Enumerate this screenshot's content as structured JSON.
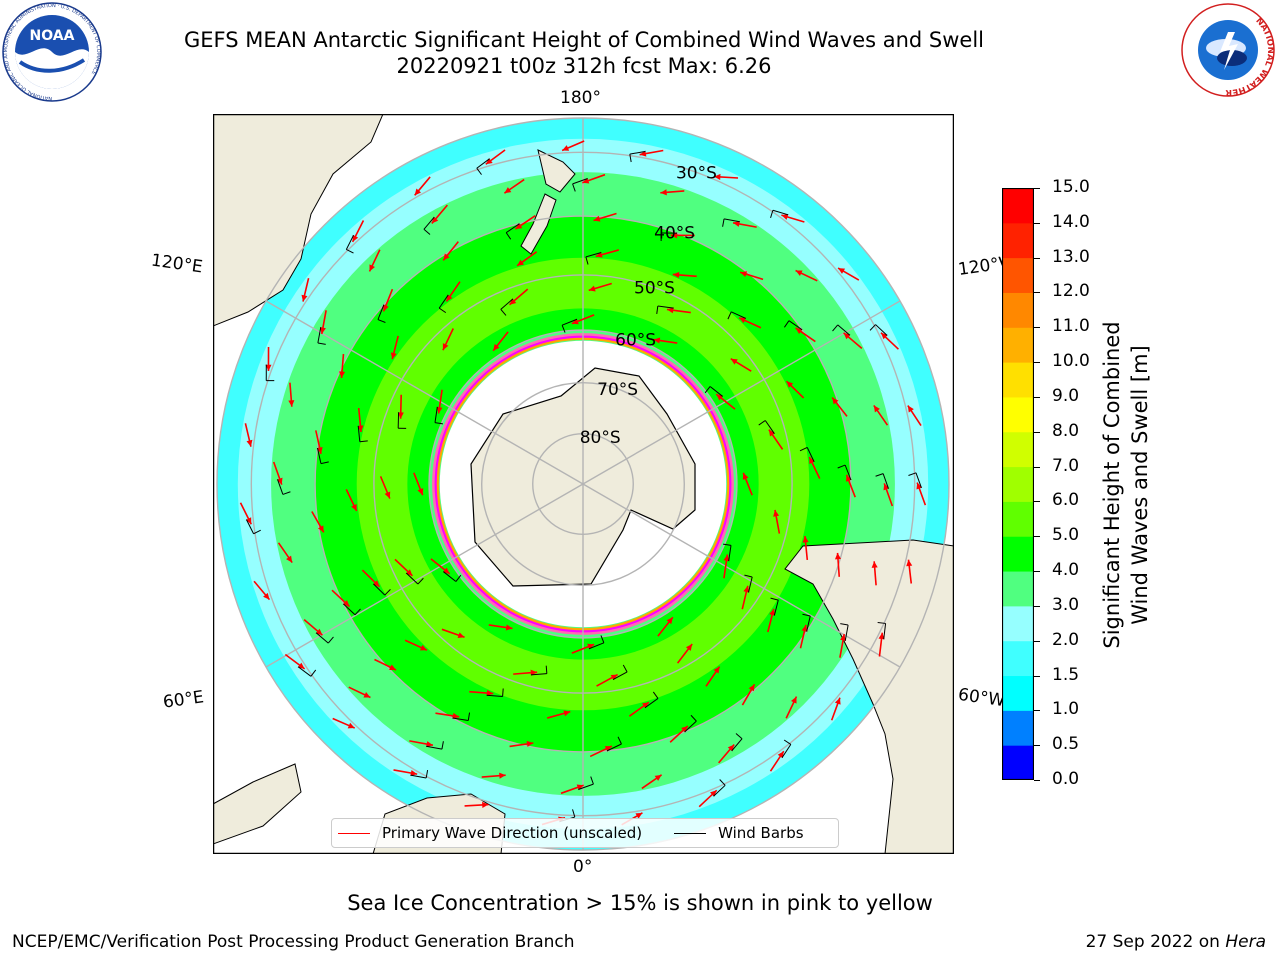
{
  "header": {
    "title_line1": "GEFS MEAN Antarctic Significant Height of Combined Wind Waves and Swell",
    "title_line2": "20220921 t00z 312h fcst   Max: 6.26"
  },
  "logos": {
    "left": {
      "icon": "noaa-logo",
      "text": "NOAA",
      "ring_text": "NATIONAL OCEANIC AND ATMOSPHERIC ADMINISTRATION · U.S. DEPARTMENT OF COMMERCE"
    },
    "right": {
      "icon": "nws-logo",
      "ring_text": "NATIONAL WEATHER SERVICE"
    }
  },
  "map": {
    "projection": "south polar stereographic",
    "lon_labels": {
      "top": "180°",
      "bottom": "0°",
      "upper_left": "120°E",
      "lower_left": "60°E",
      "upper_right": "120°W",
      "lower_right": "60°W"
    },
    "lat_labels": [
      "30°S",
      "40°S",
      "50°S",
      "60°S",
      "70°S",
      "80°S"
    ],
    "colors": {
      "land": "#efecdc",
      "ocean": "#ffffff",
      "grid": "#b4b4b4",
      "ice_edge": [
        "#ff00ff",
        "#ff69b4",
        "#ffa500",
        "#ffd700"
      ]
    }
  },
  "chart_data": {
    "type": "heatmap",
    "variable": "Significant Height of Combined Wind Waves and Swell [m]",
    "colorbar_ticks": [
      "0.0",
      "0.5",
      "1.0",
      "1.5",
      "2.0",
      "3.0",
      "4.0",
      "5.0",
      "6.0",
      "7.0",
      "8.0",
      "9.0",
      "10.0",
      "11.0",
      "12.0",
      "13.0",
      "14.0",
      "15.0"
    ],
    "colorbar_colors": [
      "#0000ff",
      "#0080ff",
      "#00ffff",
      "#40ffff",
      "#96ffff",
      "#50ff80",
      "#00ff00",
      "#60ff00",
      "#a0ff00",
      "#d0ff00",
      "#ffff00",
      "#ffe000",
      "#ffb000",
      "#ff8800",
      "#ff5500",
      "#ff2200",
      "#ff0000"
    ],
    "bands": [
      {
        "lat_from": -62,
        "lat_to": -60,
        "value": 3.5
      },
      {
        "lat_from": -60,
        "lat_to": -56,
        "value": 4.5
      },
      {
        "lat_from": -56,
        "lat_to": -47,
        "value": 5.5
      },
      {
        "lat_from": -47,
        "lat_to": -40,
        "value": 4.5
      },
      {
        "lat_from": -40,
        "lat_to": -33,
        "value": 3.5
      },
      {
        "lat_from": -33,
        "lat_to": -28,
        "value": 2.5
      },
      {
        "lat_from": -28,
        "lat_to": -25,
        "value": 1.8
      }
    ],
    "max": 6.26,
    "valid": "20220921 t00z 312h fcst"
  },
  "colorbar": {
    "label_line1": "Significant Height of Combined",
    "label_line2": "Wind Waves and Swell [m]"
  },
  "legend": {
    "wave_label": "Primary Wave Direction (unscaled)",
    "barb_label": "Wind Barbs"
  },
  "caption": "Sea Ice Concentration > 15% is shown in pink to yellow",
  "footer": {
    "left": "NCEP/EMC/Verification Post Processing Product Generation Branch",
    "date": "27 Sep 2022 on",
    "machine": "Hera"
  }
}
